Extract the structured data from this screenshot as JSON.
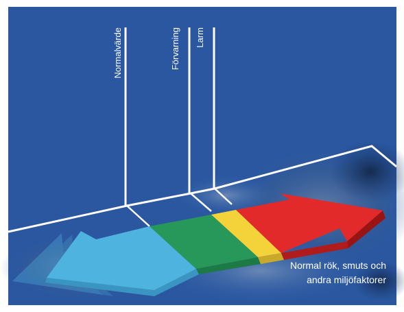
{
  "thresholds": {
    "normal": "Normalvärde",
    "prealarm": "Förvarning",
    "alarm": "Larm"
  },
  "caption": {
    "line1": "Normal rök, smuts och",
    "line2": "andra miljöfaktorer"
  },
  "colors": {
    "background": "#2a57a0",
    "blue": "#4fb3e0",
    "green": "#27985a",
    "yellow": "#f3d23a",
    "red": "#e32a2a",
    "lines": "#ffffff"
  }
}
